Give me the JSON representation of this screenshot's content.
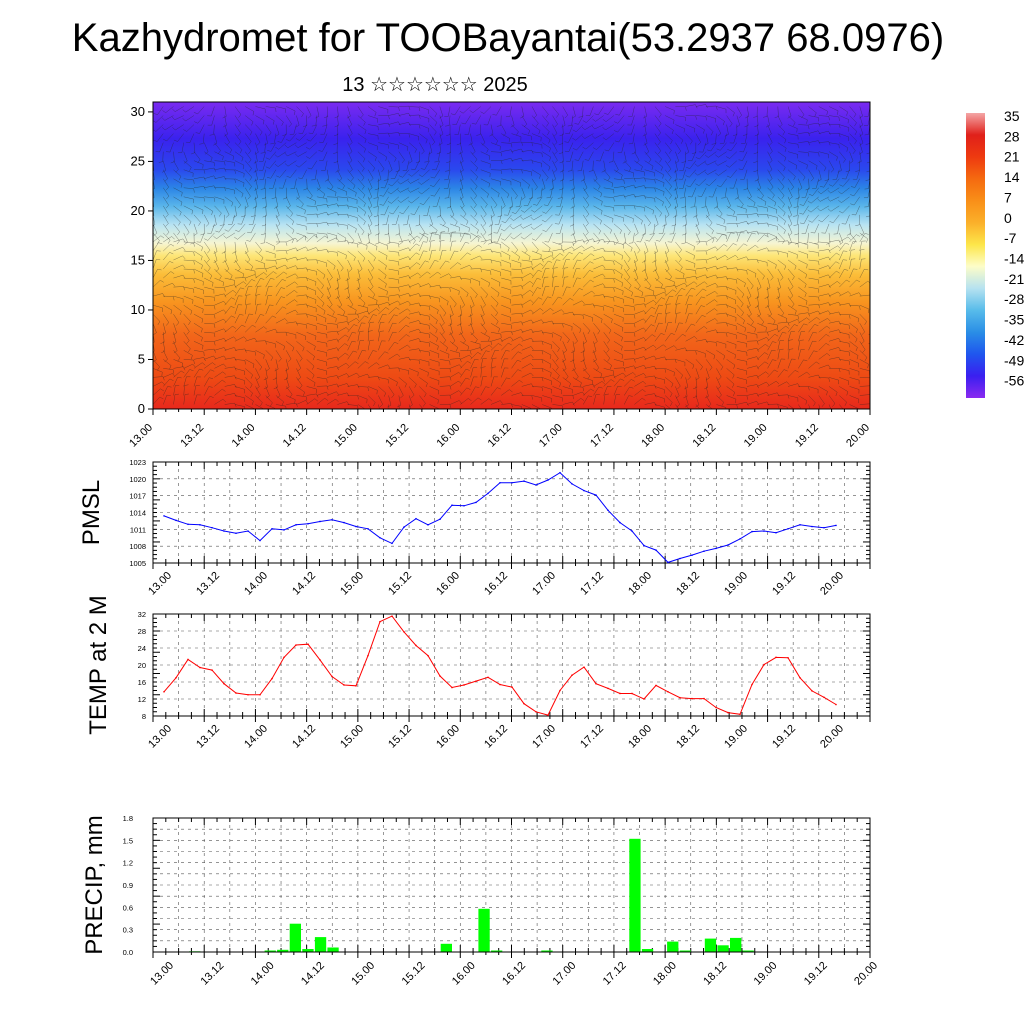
{
  "title": "Kazhydromet for TOOBayantai(53.2937 68.0976)",
  "subtitle": "13 ☆☆☆☆☆☆ 2025",
  "colors": {
    "pmsl_line": "#0000ff",
    "temp_line": "#ff0000",
    "precip_bar": "#00ff00"
  },
  "chart_data": [
    {
      "type": "heatmap",
      "description_series": "cross-section of temperature with wind barbs",
      "x_tick_labels": [
        "13.00",
        "13.12",
        "14.00",
        "14.12",
        "15.00",
        "15.12",
        "16.00",
        "16.12",
        "17.00",
        "17.12",
        "18.00",
        "18.12",
        "19.00",
        "19.12",
        "20.00"
      ],
      "y_tick_labels": [
        "0",
        "5",
        "10",
        "15",
        "20",
        "25",
        "30"
      ],
      "ylim": [
        0,
        31
      ],
      "colorbar_labels": [
        "35",
        "28",
        "21",
        "14",
        "7",
        "0",
        "-7",
        "-14",
        "-21",
        "-28",
        "-35",
        "-42",
        "-49",
        "-56"
      ],
      "colorbar_colors": [
        "#f4a6a6",
        "#e0201a",
        "#ee3a10",
        "#f56a10",
        "#f98f18",
        "#fbb02a",
        "#fde64a",
        "#fdfdc8",
        "#b6e2f0",
        "#58bcea",
        "#2a8ee6",
        "#1f56ee",
        "#3a1ff0",
        "#8a2af0"
      ]
    },
    {
      "type": "line",
      "ylabel": "PMSL",
      "x_tick_labels": [
        "13.00",
        "13.12",
        "14.00",
        "14.12",
        "15.00",
        "15.12",
        "16.00",
        "16.12",
        "17.00",
        "17.12",
        "18.00",
        "18.12",
        "19.00",
        "19.12",
        "20.00"
      ],
      "y_tick_labels": [
        "1005",
        "1008",
        "1011",
        "1014",
        "1017",
        "1020",
        "1023"
      ],
      "ylim": [
        1005,
        1023
      ],
      "series": [
        {
          "values": [
            1013.4,
            1012.6,
            1011.9,
            1011.8,
            1011.3,
            1010.7,
            1010.3,
            1010.7,
            1009.0,
            1011.1,
            1010.9,
            1011.8,
            1012.0,
            1012.4,
            1012.7,
            1012.2,
            1011.5,
            1011.1,
            1009.5,
            1008.5,
            1011.4,
            1012.9,
            1011.8,
            1012.8,
            1015.3,
            1015.2,
            1015.8,
            1017.4,
            1019.3,
            1019.3,
            1019.6,
            1018.9,
            1019.8,
            1021.1,
            1019.1,
            1017.9,
            1017.1,
            1014.4,
            1012.2,
            1010.7,
            1008.1,
            1007.3,
            1005.1,
            1005.8,
            1006.4,
            1007.1,
            1007.6,
            1008.2,
            1009.3,
            1010.6,
            1010.7,
            1010.4,
            1011.1,
            1011.8,
            1011.5,
            1011.3,
            1011.7
          ]
        }
      ]
    },
    {
      "type": "line",
      "ylabel": "TEMP at 2 M",
      "x_tick_labels": [
        "13.00",
        "13.12",
        "14.00",
        "14.12",
        "15.00",
        "15.12",
        "16.00",
        "16.12",
        "17.00",
        "17.12",
        "18.00",
        "18.12",
        "19.00",
        "19.12",
        "20.00"
      ],
      "y_tick_labels": [
        "8",
        "12",
        "16",
        "20",
        "24",
        "28",
        "32"
      ],
      "ylim": [
        8,
        32
      ],
      "series": [
        {
          "values": [
            13.7,
            17.0,
            21.3,
            19.4,
            18.8,
            15.6,
            13.4,
            13.0,
            13.0,
            16.8,
            21.8,
            24.7,
            24.9,
            21.2,
            17.3,
            15.3,
            15.1,
            22.2,
            30.2,
            31.5,
            27.8,
            24.6,
            22.2,
            17.4,
            14.7,
            15.3,
            16.2,
            17.1,
            15.4,
            14.8,
            10.9,
            9.0,
            8.2,
            14.0,
            17.6,
            19.5,
            15.6,
            14.5,
            13.3,
            13.3,
            12.0,
            15.2,
            13.7,
            12.3,
            12.1,
            12.1,
            10.0,
            8.8,
            8.4,
            15.4,
            20.1,
            21.8,
            21.7,
            17.0,
            13.9,
            12.4,
            10.7
          ]
        }
      ]
    },
    {
      "type": "bar",
      "ylabel": "PRECIP, mm",
      "x_tick_labels": [
        "13.00",
        "13.12",
        "14.00",
        "14.12",
        "15.00",
        "15.12",
        "16.00",
        "16.12",
        "17.00",
        "17.12",
        "18.00",
        "18.12",
        "19.00",
        "19.12",
        "20.00"
      ],
      "y_tick_labels": [
        "0.0",
        "0.3",
        "0.6",
        "0.9",
        "1.2",
        "1.5",
        "1.8"
      ],
      "ylim": [
        0,
        1.8
      ],
      "values": [
        0,
        0,
        0,
        0.01,
        0,
        0,
        0,
        0,
        0,
        0.02,
        0.03,
        0.38,
        0.04,
        0.2,
        0.06,
        0,
        0,
        0,
        0,
        0,
        0,
        0,
        0,
        0.11,
        0,
        0,
        0.58,
        0.02,
        0,
        0,
        0,
        0.02,
        0,
        0,
        0,
        0,
        0,
        0,
        1.52,
        0.04,
        0,
        0.14,
        0.02,
        0,
        0.18,
        0.09,
        0.19,
        0.02,
        0,
        0,
        0,
        0,
        0,
        0,
        0,
        0,
        0,
        0
      ]
    }
  ]
}
